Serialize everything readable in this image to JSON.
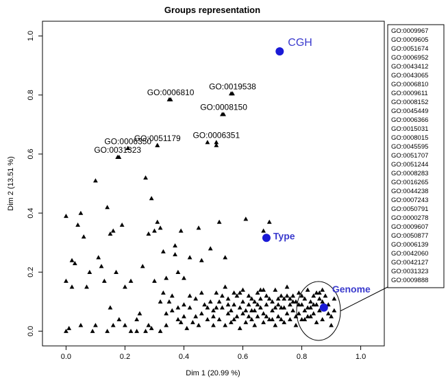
{
  "colors": {
    "points": "#000000",
    "highlight": "#1a1ad6",
    "highlight_text": "#3a3acd",
    "axis": "#000000"
  },
  "chart_data": {
    "type": "scatter",
    "title": "Groups representation",
    "xlabel": "Dim 1 (20.99 %)",
    "ylabel": "Dim 2 (13.51 %)",
    "xlim": [
      -0.08,
      1.08
    ],
    "ylim": [
      -0.05,
      1.05
    ],
    "xticks": [
      0.0,
      0.2,
      0.4,
      0.6,
      0.8,
      1.0
    ],
    "yticks": [
      0.0,
      0.2,
      0.4,
      0.6,
      0.8,
      1.0
    ],
    "tick_labels_x": [
      "0.0",
      "0.2",
      "0.4",
      "0.6",
      "0.8",
      "1.0"
    ],
    "tick_labels_y": [
      "0.0",
      "0.2",
      "0.4",
      "0.6",
      "0.8",
      "1.0"
    ],
    "grid": false,
    "highlight_points": [
      {
        "name": "CGH",
        "x": 0.725,
        "y": 0.948
      },
      {
        "name": "Type",
        "x": 0.68,
        "y": 0.316
      },
      {
        "name": "Genome",
        "x": 0.875,
        "y": 0.08
      }
    ],
    "labeled_points": [
      {
        "name": "GO:0006810",
        "x": 0.355,
        "y": 0.785
      },
      {
        "name": "GO:0019538",
        "x": 0.565,
        "y": 0.805
      },
      {
        "name": "GO:0008150",
        "x": 0.535,
        "y": 0.735
      },
      {
        "name": "GO:0006351",
        "x": 0.51,
        "y": 0.64
      },
      {
        "name": "GO:0006350",
        "x": 0.21,
        "y": 0.62
      },
      {
        "name": "GO:0031323",
        "x": 0.175,
        "y": 0.59
      },
      {
        "name": "GO:0051179",
        "x": 0.31,
        "y": 0.63
      }
    ],
    "go_terms": [
      "GO:0009967",
      "GO:0009605",
      "GO:0051674",
      "GO:0006952",
      "GO:0043412",
      "GO:0043065",
      "GO:0006810",
      "GO:0009611",
      "GO:0008152",
      "GO:0045449",
      "GO:0006366",
      "GO:0015031",
      "GO:0008015",
      "GO:0045595",
      "GO:0051707",
      "GO:0051244",
      "GO:0008283",
      "GO:0016265",
      "GO:0044238",
      "GO:0007243",
      "GO:0050791",
      "GO:0000278",
      "GO:0009607",
      "GO:0050877",
      "GO:0006139",
      "GO:0042060",
      "GO:0042127",
      "GO:0031323",
      "GO:0009888"
    ],
    "points": [
      [
        0.0,
        0.0
      ],
      [
        0.0,
        0.17
      ],
      [
        0.0,
        0.39
      ],
      [
        0.01,
        0.01
      ],
      [
        0.02,
        0.24
      ],
      [
        0.02,
        0.15
      ],
      [
        0.03,
        0.23
      ],
      [
        0.04,
        0.36
      ],
      [
        0.05,
        0.02
      ],
      [
        0.05,
        0.4
      ],
      [
        0.06,
        0.32
      ],
      [
        0.07,
        0.15
      ],
      [
        0.08,
        0.2
      ],
      [
        0.09,
        0.0
      ],
      [
        0.1,
        0.51
      ],
      [
        0.1,
        0.02
      ],
      [
        0.11,
        0.25
      ],
      [
        0.12,
        0.22
      ],
      [
        0.13,
        0.17
      ],
      [
        0.14,
        0.42
      ],
      [
        0.14,
        0.0
      ],
      [
        0.15,
        0.08
      ],
      [
        0.15,
        0.33
      ],
      [
        0.16,
        0.34
      ],
      [
        0.16,
        0.02
      ],
      [
        0.17,
        0.2
      ],
      [
        0.18,
        0.59
      ],
      [
        0.18,
        0.04
      ],
      [
        0.19,
        0.36
      ],
      [
        0.2,
        0.02
      ],
      [
        0.2,
        0.15
      ],
      [
        0.21,
        0.62
      ],
      [
        0.22,
        0.0
      ],
      [
        0.22,
        0.17
      ],
      [
        0.24,
        0.0
      ],
      [
        0.24,
        0.04
      ],
      [
        0.25,
        0.06
      ],
      [
        0.26,
        0.22
      ],
      [
        0.27,
        0.52
      ],
      [
        0.27,
        0.0
      ],
      [
        0.28,
        0.33
      ],
      [
        0.28,
        0.02
      ],
      [
        0.29,
        0.45
      ],
      [
        0.29,
        0.01
      ],
      [
        0.3,
        0.34
      ],
      [
        0.3,
        0.17
      ],
      [
        0.31,
        0.63
      ],
      [
        0.31,
        0.37
      ],
      [
        0.32,
        0.35
      ],
      [
        0.32,
        0.0
      ],
      [
        0.33,
        0.27
      ],
      [
        0.33,
        0.13
      ],
      [
        0.34,
        0.18
      ],
      [
        0.34,
        0.02
      ],
      [
        0.35,
        0.785
      ],
      [
        0.35,
        0.1
      ],
      [
        0.36,
        0.07
      ],
      [
        0.37,
        0.29
      ],
      [
        0.37,
        0.26
      ],
      [
        0.38,
        0.2
      ],
      [
        0.38,
        0.08
      ],
      [
        0.39,
        0.34
      ],
      [
        0.39,
        0.03
      ],
      [
        0.4,
        0.05
      ],
      [
        0.4,
        0.18
      ],
      [
        0.41,
        0.01
      ],
      [
        0.42,
        0.25
      ],
      [
        0.42,
        0.08
      ],
      [
        0.43,
        0.03
      ],
      [
        0.44,
        0.11
      ],
      [
        0.45,
        0.35
      ],
      [
        0.45,
        0.02
      ],
      [
        0.46,
        0.24
      ],
      [
        0.46,
        0.06
      ],
      [
        0.47,
        0.09
      ],
      [
        0.48,
        0.64
      ],
      [
        0.48,
        0.04
      ],
      [
        0.49,
        0.28
      ],
      [
        0.49,
        0.1
      ],
      [
        0.5,
        0.07
      ],
      [
        0.5,
        0.02
      ],
      [
        0.51,
        0.63
      ],
      [
        0.51,
        0.13
      ],
      [
        0.52,
        0.04
      ],
      [
        0.52,
        0.37
      ],
      [
        0.53,
        0.735
      ],
      [
        0.53,
        0.08
      ],
      [
        0.54,
        0.25
      ],
      [
        0.54,
        0.02
      ],
      [
        0.55,
        0.11
      ],
      [
        0.55,
        0.06
      ],
      [
        0.56,
        0.805
      ],
      [
        0.56,
        0.03
      ],
      [
        0.57,
        0.09
      ],
      [
        0.57,
        0.13
      ],
      [
        0.58,
        0.05
      ],
      [
        0.59,
        0.08
      ],
      [
        0.59,
        0.01
      ],
      [
        0.6,
        0.14
      ],
      [
        0.6,
        0.06
      ],
      [
        0.61,
        0.03
      ],
      [
        0.61,
        0.38
      ],
      [
        0.62,
        0.09
      ],
      [
        0.62,
        0.12
      ],
      [
        0.63,
        0.04
      ],
      [
        0.63,
        0.07
      ],
      [
        0.64,
        0.1
      ],
      [
        0.64,
        0.02
      ],
      [
        0.65,
        0.13
      ],
      [
        0.65,
        0.05
      ],
      [
        0.66,
        0.08
      ],
      [
        0.66,
        0.11
      ],
      [
        0.67,
        0.03
      ],
      [
        0.67,
        0.34
      ],
      [
        0.67,
        0.06
      ],
      [
        0.68,
        0.09
      ],
      [
        0.68,
        0.12
      ],
      [
        0.69,
        0.37
      ],
      [
        0.69,
        0.04
      ],
      [
        0.7,
        0.1
      ],
      [
        0.7,
        0.07
      ],
      [
        0.71,
        0.14
      ],
      [
        0.71,
        0.02
      ],
      [
        0.72,
        0.09
      ],
      [
        0.72,
        0.05
      ],
      [
        0.73,
        0.12
      ],
      [
        0.73,
        0.08
      ],
      [
        0.74,
        0.11
      ],
      [
        0.74,
        0.03
      ],
      [
        0.75,
        0.06
      ],
      [
        0.75,
        0.15
      ],
      [
        0.76,
        0.09
      ],
      [
        0.76,
        0.04
      ],
      [
        0.77,
        0.12
      ],
      [
        0.77,
        0.07
      ],
      [
        0.78,
        0.1
      ],
      [
        0.78,
        0.02
      ],
      [
        0.79,
        0.13
      ],
      [
        0.79,
        0.06
      ],
      [
        0.8,
        0.09
      ],
      [
        0.8,
        0.04
      ],
      [
        0.81,
        0.11
      ],
      [
        0.81,
        0.07
      ],
      [
        0.82,
        0.14
      ],
      [
        0.82,
        0.05
      ],
      [
        0.83,
        0.08
      ],
      [
        0.83,
        0.1
      ],
      [
        0.84,
        0.12
      ],
      [
        0.84,
        0.06
      ],
      [
        0.85,
        0.09
      ],
      [
        0.85,
        0.03
      ],
      [
        0.86,
        0.11
      ],
      [
        0.86,
        0.07
      ],
      [
        0.87,
        0.1
      ],
      [
        0.87,
        0.04
      ],
      [
        0.88,
        0.08
      ],
      [
        0.88,
        0.12
      ],
      [
        0.89,
        0.06
      ],
      [
        0.89,
        0.09
      ],
      [
        0.9,
        0.05
      ],
      [
        0.9,
        0.02
      ],
      [
        0.91,
        0.07
      ],
      [
        0.91,
        0.11
      ],
      [
        0.86,
        0.13
      ],
      [
        0.84,
        0.09
      ],
      [
        0.82,
        0.08
      ],
      [
        0.8,
        0.12
      ],
      [
        0.78,
        0.05
      ],
      [
        0.76,
        0.11
      ],
      [
        0.74,
        0.08
      ],
      [
        0.72,
        0.11
      ],
      [
        0.7,
        0.04
      ],
      [
        0.68,
        0.05
      ],
      [
        0.66,
        0.14
      ],
      [
        0.64,
        0.07
      ],
      [
        0.62,
        0.05
      ],
      [
        0.6,
        0.1
      ],
      [
        0.58,
        0.12
      ],
      [
        0.56,
        0.07
      ],
      [
        0.54,
        0.15
      ],
      [
        0.52,
        0.1
      ],
      [
        0.5,
        0.05
      ],
      [
        0.48,
        0.08
      ],
      [
        0.46,
        0.13
      ],
      [
        0.44,
        0.05
      ],
      [
        0.42,
        0.12
      ],
      [
        0.4,
        0.09
      ],
      [
        0.38,
        0.04
      ],
      [
        0.36,
        0.12
      ],
      [
        0.34,
        0.06
      ],
      [
        0.32,
        0.1
      ],
      [
        0.85,
        0.13
      ],
      [
        0.87,
        0.14
      ],
      [
        0.83,
        0.05
      ],
      [
        0.81,
        0.04
      ],
      [
        0.79,
        0.09
      ],
      [
        0.77,
        0.1
      ],
      [
        0.75,
        0.12
      ],
      [
        0.73,
        0.04
      ],
      [
        0.71,
        0.08
      ],
      [
        0.69,
        0.11
      ],
      [
        0.67,
        0.14
      ],
      [
        0.65,
        0.09
      ],
      [
        0.63,
        0.11
      ],
      [
        0.61,
        0.07
      ],
      [
        0.59,
        0.13
      ],
      [
        0.57,
        0.04
      ],
      [
        0.55,
        0.09
      ],
      [
        0.53,
        0.12
      ],
      [
        0.51,
        0.08
      ]
    ]
  }
}
